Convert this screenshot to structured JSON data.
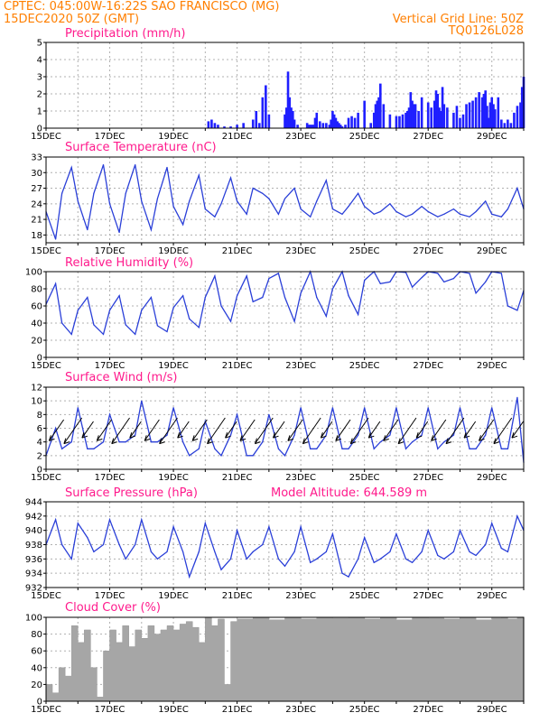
{
  "header": {
    "line1": "CPTEC:  045:00W-16:22S  SAO FRANCISCO (MG)",
    "line2_left": "15DEC2020 50Z (GMT)",
    "line2_right": "Vertical Grid Line: 50Z",
    "line3_right": "TQ0126L028"
  },
  "colors": {
    "header": "#ff7f00",
    "panel_title": "#ff1a8c",
    "line": "#2a3fd8",
    "bars": "#1f1fff",
    "cloud": "#a6a6a6"
  },
  "chart_data": [
    {
      "type": "bar",
      "title": "Precipitation (mm/h)",
      "x_start": "15DEC",
      "x_end": "30DEC",
      "x_ticks": [
        "15DEC",
        "17DEC",
        "19DEC",
        "21DEC",
        "23DEC",
        "25DEC",
        "27DEC",
        "29DEC"
      ],
      "ylim": [
        0,
        5
      ],
      "yticks": [
        0,
        1,
        2,
        3,
        4,
        5
      ],
      "grid": true,
      "x": [
        5.1,
        5.2,
        5.3,
        5.4,
        5.6,
        5.8,
        6.0,
        6.2,
        6.5,
        6.6,
        6.7,
        6.8,
        6.9,
        7.0,
        7.5,
        7.55,
        7.6,
        7.65,
        7.7,
        7.75,
        7.8,
        7.9,
        8.2,
        8.25,
        8.3,
        8.35,
        8.4,
        8.45,
        8.5,
        8.6,
        8.7,
        8.8,
        8.9,
        8.95,
        9.0,
        9.05,
        9.1,
        9.15,
        9.2,
        9.25,
        9.3,
        9.4,
        9.5,
        9.6,
        9.7,
        9.8,
        10.0,
        10.2,
        10.3,
        10.35,
        10.4,
        10.45,
        10.5,
        10.6,
        10.8,
        11.0,
        11.1,
        11.2,
        11.3,
        11.35,
        11.4,
        11.45,
        11.5,
        11.55,
        11.6,
        11.7,
        11.8,
        12.0,
        12.1,
        12.2,
        12.25,
        12.3,
        12.35,
        12.4,
        12.45,
        12.5,
        12.6,
        12.8,
        12.9,
        13.0,
        13.1,
        13.2,
        13.3,
        13.4,
        13.5,
        13.6,
        13.7,
        13.75,
        13.8,
        13.85,
        13.9,
        13.95,
        14.0,
        14.05,
        14.1,
        14.2,
        14.3,
        14.4,
        14.5,
        14.6,
        14.7,
        14.8,
        14.9,
        14.95,
        15.0
      ],
      "values": [
        0.4,
        0.5,
        0.3,
        0.2,
        0.1,
        0.1,
        0.2,
        0.3,
        0.5,
        1.0,
        0.3,
        1.8,
        2.5,
        0.8,
        0.8,
        1.2,
        3.3,
        1.8,
        1.2,
        1.0,
        0.5,
        0.2,
        0.3,
        0.2,
        0.2,
        0.2,
        0.2,
        0.6,
        0.9,
        0.4,
        0.3,
        0.3,
        0.2,
        0.5,
        1.0,
        0.8,
        0.6,
        0.4,
        0.3,
        0.2,
        0.1,
        0.2,
        0.6,
        0.7,
        0.6,
        0.9,
        1.6,
        0.3,
        0.9,
        1.4,
        1.6,
        1.8,
        2.6,
        1.4,
        0.8,
        0.7,
        0.7,
        0.8,
        0.9,
        1.0,
        1.2,
        2.1,
        1.6,
        1.4,
        1.4,
        1.0,
        1.8,
        1.5,
        1.2,
        1.6,
        2.2,
        2.0,
        1.2,
        1.0,
        2.4,
        1.4,
        1.2,
        0.9,
        1.3,
        0.6,
        0.8,
        1.4,
        1.5,
        1.6,
        1.8,
        2.1,
        1.8,
        2.0,
        2.2,
        1.3,
        0.6,
        1.5,
        1.8,
        1.4,
        1.1,
        1.8,
        0.5,
        0.3,
        0.5,
        0.3,
        0.9,
        1.3,
        1.5,
        2.4,
        3.0
      ]
    },
    {
      "type": "line",
      "title": "Surface Temperature (nC)",
      "x_ticks": [
        "15DEC",
        "17DEC",
        "19DEC",
        "21DEC",
        "23DEC",
        "25DEC",
        "27DEC",
        "29DEC"
      ],
      "ylim": [
        16.5,
        33
      ],
      "yticks": [
        18,
        21,
        24,
        27,
        30,
        33
      ],
      "grid": true,
      "x": [
        0,
        0.3,
        0.5,
        0.8,
        1.0,
        1.3,
        1.5,
        1.8,
        2.0,
        2.3,
        2.5,
        2.8,
        3.0,
        3.3,
        3.5,
        3.8,
        4.0,
        4.3,
        4.5,
        4.8,
        5.0,
        5.3,
        5.5,
        5.8,
        6.0,
        6.3,
        6.5,
        6.8,
        7.0,
        7.3,
        7.5,
        7.8,
        8.0,
        8.3,
        8.5,
        8.8,
        9.0,
        9.3,
        9.5,
        9.8,
        10.0,
        10.3,
        10.5,
        10.8,
        11.0,
        11.3,
        11.5,
        11.8,
        12.0,
        12.3,
        12.5,
        12.8,
        13.0,
        13.3,
        13.5,
        13.8,
        14.0,
        14.3,
        14.5,
        14.8,
        15.0
      ],
      "values": [
        22.5,
        17.2,
        26,
        31,
        24.5,
        19,
        26,
        31.5,
        24,
        18.5,
        26,
        31.5,
        24.5,
        19,
        25,
        31,
        23.5,
        20,
        24.5,
        29.5,
        23,
        21.5,
        24,
        29,
        24.5,
        22,
        27,
        26,
        25,
        22,
        25,
        27,
        23,
        21.5,
        24.5,
        28.5,
        23,
        22,
        23.5,
        26,
        23.5,
        22,
        22.5,
        24,
        22.5,
        21.5,
        22,
        23.5,
        22.5,
        21.5,
        22,
        23,
        22,
        21.5,
        22.5,
        24.5,
        22,
        21.5,
        23,
        27,
        23
      ]
    },
    {
      "type": "line",
      "title": "Relative Humidity (%)",
      "x_ticks": [
        "15DEC",
        "17DEC",
        "19DEC",
        "21DEC",
        "23DEC",
        "25DEC",
        "27DEC",
        "29DEC"
      ],
      "ylim": [
        0,
        100
      ],
      "yticks": [
        0,
        20,
        40,
        60,
        80,
        100
      ],
      "grid": true,
      "x": [
        0,
        0.3,
        0.5,
        0.8,
        1.0,
        1.3,
        1.5,
        1.8,
        2.0,
        2.3,
        2.5,
        2.8,
        3.0,
        3.3,
        3.5,
        3.8,
        4.0,
        4.3,
        4.5,
        4.8,
        5.0,
        5.3,
        5.5,
        5.8,
        6.0,
        6.3,
        6.5,
        6.8,
        7.0,
        7.3,
        7.5,
        7.8,
        8.0,
        8.3,
        8.5,
        8.8,
        9.0,
        9.3,
        9.5,
        9.8,
        10.0,
        10.3,
        10.5,
        10.8,
        11.0,
        11.3,
        11.5,
        11.8,
        12.0,
        12.3,
        12.5,
        12.8,
        13.0,
        13.3,
        13.5,
        13.8,
        14.0,
        14.3,
        14.5,
        14.8,
        15.0
      ],
      "values": [
        62,
        86,
        40,
        27,
        55,
        70,
        38,
        27,
        55,
        72,
        38,
        27,
        55,
        70,
        37,
        30,
        58,
        72,
        45,
        35,
        70,
        95,
        60,
        42,
        72,
        95,
        65,
        70,
        92,
        98,
        70,
        42,
        75,
        100,
        70,
        48,
        80,
        100,
        72,
        50,
        90,
        100,
        86,
        88,
        100,
        99,
        82,
        93,
        100,
        98,
        88,
        92,
        100,
        98,
        75,
        88,
        100,
        98,
        60,
        55,
        78
      ]
    },
    {
      "type": "line",
      "title": "Surface Wind (m/s)",
      "x_ticks": [
        "15DEC",
        "17DEC",
        "19DEC",
        "21DEC",
        "23DEC",
        "25DEC",
        "27DEC",
        "29DEC"
      ],
      "ylim": [
        0,
        12
      ],
      "yticks": [
        0,
        2,
        4,
        6,
        8,
        10,
        12
      ],
      "grid": true,
      "x": [
        0,
        0.3,
        0.5,
        0.8,
        1.0,
        1.3,
        1.5,
        1.8,
        2.0,
        2.3,
        2.5,
        2.8,
        3.0,
        3.3,
        3.5,
        3.8,
        4.0,
        4.3,
        4.5,
        4.8,
        5.0,
        5.3,
        5.5,
        5.8,
        6.0,
        6.3,
        6.5,
        6.8,
        7.0,
        7.3,
        7.5,
        7.8,
        8.0,
        8.3,
        8.5,
        8.8,
        9.0,
        9.3,
        9.5,
        9.8,
        10.0,
        10.3,
        10.5,
        10.8,
        11.0,
        11.3,
        11.5,
        11.8,
        12.0,
        12.3,
        12.5,
        12.8,
        13.0,
        13.3,
        13.5,
        13.8,
        14.0,
        14.3,
        14.5,
        14.8,
        15.0
      ],
      "values": [
        2,
        6,
        3,
        4,
        9,
        3,
        3,
        4,
        8,
        4,
        4,
        5,
        10,
        4,
        4,
        5,
        9,
        4,
        2,
        3,
        7,
        3,
        2,
        5,
        8,
        2,
        2,
        4,
        8,
        3,
        2,
        5,
        9,
        3,
        3,
        5,
        9,
        3,
        3,
        5,
        9,
        3,
        4,
        5,
        9,
        3,
        4,
        5,
        9,
        3,
        4,
        5,
        9,
        3,
        3,
        5,
        9,
        3,
        3,
        10.5,
        1
      ]
    },
    {
      "type": "line",
      "title": "Surface Pressure (hPa)",
      "annotation": "Model Altitude: 644.589  m",
      "x_ticks": [
        "15DEC",
        "17DEC",
        "19DEC",
        "21DEC",
        "23DEC",
        "25DEC",
        "27DEC",
        "29DEC"
      ],
      "ylim": [
        932,
        944
      ],
      "yticks": [
        932,
        934,
        936,
        938,
        940,
        942,
        944
      ],
      "grid": true,
      "x": [
        0,
        0.3,
        0.5,
        0.8,
        1.0,
        1.3,
        1.5,
        1.8,
        2.0,
        2.3,
        2.5,
        2.8,
        3.0,
        3.3,
        3.5,
        3.8,
        4.0,
        4.3,
        4.5,
        4.8,
        5.0,
        5.3,
        5.5,
        5.8,
        6.0,
        6.3,
        6.5,
        6.8,
        7.0,
        7.3,
        7.5,
        7.8,
        8.0,
        8.3,
        8.5,
        8.8,
        9.0,
        9.3,
        9.5,
        9.8,
        10.0,
        10.3,
        10.5,
        10.8,
        11.0,
        11.3,
        11.5,
        11.8,
        12.0,
        12.3,
        12.5,
        12.8,
        13.0,
        13.3,
        13.5,
        13.8,
        14.0,
        14.3,
        14.5,
        14.8,
        15.0
      ],
      "values": [
        938,
        941.5,
        938,
        936,
        941,
        939,
        937,
        938,
        941.5,
        938,
        936,
        938,
        941.5,
        937,
        936,
        937,
        940.5,
        937,
        933.5,
        937,
        941,
        937,
        934.5,
        936,
        940,
        936,
        937,
        938,
        940.5,
        936,
        935,
        937,
        940.5,
        935.5,
        936,
        937,
        939.5,
        934,
        933.5,
        936,
        939,
        935.5,
        936,
        937,
        939.5,
        936,
        935.5,
        937,
        940,
        936.5,
        936,
        937,
        940,
        937,
        936.5,
        938,
        941,
        937.5,
        937,
        942,
        940
      ]
    },
    {
      "type": "area",
      "title": "Cloud Cover (%)",
      "x_ticks": [
        "15DEC",
        "17DEC",
        "19DEC",
        "21DEC",
        "23DEC",
        "25DEC",
        "27DEC",
        "29DEC"
      ],
      "ylim": [
        0,
        100
      ],
      "yticks": [
        0,
        20,
        40,
        60,
        80,
        100
      ],
      "grid": true,
      "x": [
        0,
        0.2,
        0.4,
        0.6,
        0.8,
        1.0,
        1.2,
        1.4,
        1.6,
        1.8,
        2.0,
        2.2,
        2.4,
        2.6,
        2.8,
        3.0,
        3.2,
        3.4,
        3.6,
        3.8,
        4.0,
        4.2,
        4.4,
        4.6,
        4.8,
        5.0,
        5.2,
        5.4,
        5.6,
        5.8,
        6.0,
        6.5,
        7.0,
        7.5,
        8.0,
        8.5,
        9.0,
        9.5,
        10.0,
        10.5,
        11.0,
        11.5,
        12.0,
        12.5,
        13.0,
        13.5,
        14.0,
        14.3,
        14.5,
        14.8,
        15.0
      ],
      "values": [
        20,
        10,
        40,
        30,
        90,
        70,
        85,
        40,
        5,
        60,
        85,
        70,
        90,
        65,
        85,
        75,
        90,
        80,
        85,
        90,
        85,
        92,
        95,
        88,
        70,
        100,
        90,
        98,
        20,
        95,
        98,
        100,
        97,
        100,
        98,
        100,
        99,
        100,
        98,
        100,
        97,
        100,
        99,
        98,
        100,
        97,
        99,
        100,
        98,
        100,
        100
      ]
    }
  ]
}
